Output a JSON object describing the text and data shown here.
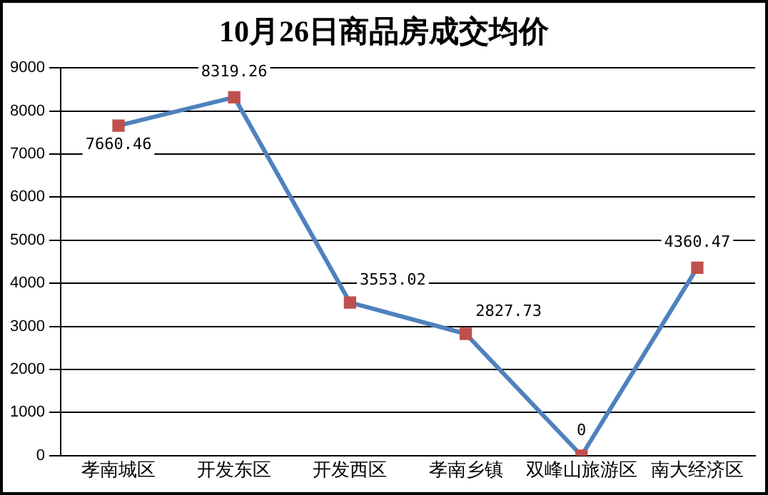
{
  "chart_data": {
    "type": "line",
    "title": "10月26日商品房成交均价",
    "categories": [
      "孝南城区",
      "开发东区",
      "开发西区",
      "孝南乡镇",
      "双峰山旅游区",
      "南大经济区"
    ],
    "series": [
      {
        "color": "#4f81bd",
        "values": [
          7660.46,
          8319.26,
          3553.02,
          2827.73,
          0,
          4360.47
        ]
      }
    ],
    "ylim": [
      0,
      9000
    ],
    "yticks": [
      0,
      1000,
      2000,
      3000,
      4000,
      5000,
      6000,
      7000,
      8000,
      9000
    ],
    "grid": "y",
    "marker": "square",
    "legend": false,
    "data_labels": true,
    "line_style": "solid"
  }
}
